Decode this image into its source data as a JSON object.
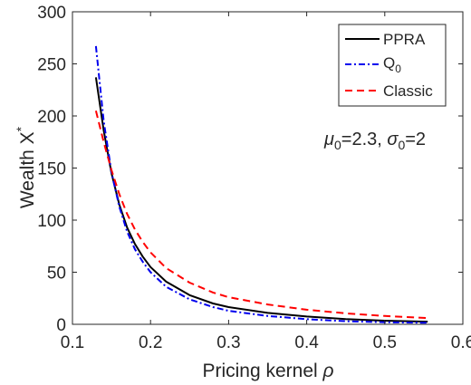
{
  "chart_data": {
    "type": "line",
    "title": "",
    "xlabel_text": "Pricing kernel ",
    "xlabel_symbol": "ρ",
    "ylabel_text": "Wealth X",
    "ylabel_sup": "*",
    "xlim": [
      0.1,
      0.6
    ],
    "ylim": [
      0,
      300
    ],
    "xticks": [
      0.1,
      0.2,
      0.3,
      0.4,
      0.5,
      0.6
    ],
    "xtick_labels": [
      "0.1",
      "0.2",
      "0.3",
      "0.4",
      "0.5",
      "0.6"
    ],
    "yticks": [
      0,
      50,
      100,
      150,
      200,
      250,
      300
    ],
    "ytick_labels": [
      "0",
      "50",
      "100",
      "150",
      "200",
      "250",
      "300"
    ],
    "grid": false,
    "legend_position": "top-right",
    "annotation": {
      "mu_symbol": "μ",
      "mu_sub": "0",
      "mu_value": "=2.3, ",
      "sigma_symbol": "σ",
      "sigma_sub": "0",
      "sigma_value": "=2"
    },
    "series": [
      {
        "name": "PPRA",
        "name_sub": "",
        "color": "#000000",
        "dash": "",
        "x": [
          0.13,
          0.14,
          0.15,
          0.16,
          0.17,
          0.18,
          0.19,
          0.2,
          0.22,
          0.25,
          0.28,
          0.3,
          0.35,
          0.4,
          0.45,
          0.5,
          0.555
        ],
        "y": [
          237,
          186,
          145,
          115,
          93,
          77,
          65,
          55,
          41,
          28,
          20,
          16.5,
          11,
          7.5,
          5,
          3.5,
          2.5
        ]
      },
      {
        "name": "Q",
        "name_sub": "0",
        "color": "#0000ee",
        "dash": "7,3,2,3",
        "x": [
          0.13,
          0.14,
          0.15,
          0.16,
          0.17,
          0.18,
          0.19,
          0.2,
          0.22,
          0.25,
          0.28,
          0.3,
          0.35,
          0.4,
          0.45,
          0.5,
          0.555
        ],
        "y": [
          267,
          195,
          146,
          113,
          89,
          72,
          60,
          50,
          36,
          24,
          16.5,
          13,
          8,
          5,
          3,
          2,
          1.5
        ]
      },
      {
        "name": "Classic",
        "name_sub": "",
        "color": "#ff0000",
        "dash": "8,5",
        "x": [
          0.13,
          0.14,
          0.15,
          0.16,
          0.17,
          0.18,
          0.19,
          0.2,
          0.22,
          0.25,
          0.28,
          0.3,
          0.35,
          0.4,
          0.45,
          0.5,
          0.555
        ],
        "y": [
          205,
          175,
          148,
          125,
          106,
          91,
          79,
          69,
          54,
          40,
          30.5,
          26,
          19,
          14,
          10.5,
          8,
          6
        ]
      }
    ]
  }
}
